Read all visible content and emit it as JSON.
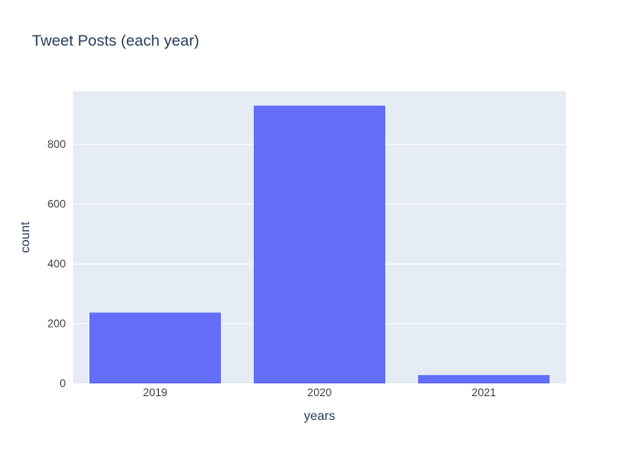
{
  "chart_data": {
    "type": "bar",
    "title": "Tweet Posts (each year)",
    "xlabel": "years",
    "ylabel": "count",
    "categories": [
      "2019",
      "2020",
      "2021"
    ],
    "values": [
      237,
      930,
      28
    ],
    "ylim": [
      0,
      978
    ],
    "yticks": [
      0,
      200,
      400,
      600,
      800
    ],
    "grid": true,
    "colors": {
      "bar": "#636efa",
      "plot_background": "#e5ecf6",
      "grid": "#ffffff",
      "text": "#2a3f5f",
      "tick_text": "#444444"
    }
  }
}
